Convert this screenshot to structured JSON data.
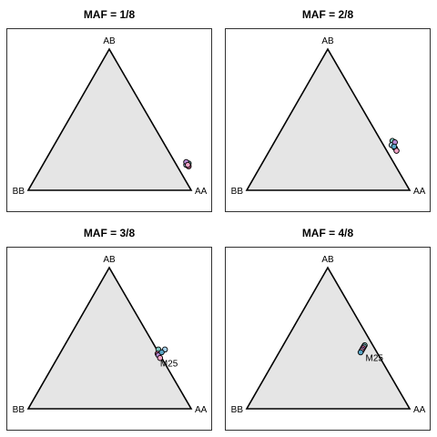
{
  "chart_data": [
    {
      "type": "scatter",
      "title": "MAF = 1/8",
      "vertices": {
        "top": "AB",
        "left": "BB",
        "right": "AA"
      },
      "point_colors": [
        "#7ec8c0",
        "#a9d4f0",
        "#e8669a",
        "#b98bd6",
        "#f4a6c8"
      ],
      "points": [
        {
          "AA": 0.89,
          "AB": 0.19,
          "BB": -0.08
        },
        {
          "AA": 0.88,
          "AB": 0.18,
          "BB": -0.06
        },
        {
          "AA": 0.9,
          "AB": 0.17,
          "BB": -0.07
        },
        {
          "AA": 0.87,
          "AB": 0.2,
          "BB": -0.07
        },
        {
          "AA": 0.89,
          "AB": 0.18,
          "BB": -0.07
        }
      ],
      "annotations": []
    },
    {
      "type": "scatter",
      "title": "MAF = 2/8",
      "vertices": {
        "top": "AB",
        "left": "BB",
        "right": "AA"
      },
      "point_colors": [
        "#7ec8c0",
        "#a9d4f0",
        "#e8669a",
        "#b98bd6",
        "#f4a6c8",
        "#5aa7c8"
      ],
      "points": [
        {
          "AA": 0.72,
          "AB": 0.35,
          "BB": -0.07
        },
        {
          "AA": 0.73,
          "AB": 0.32,
          "BB": -0.05
        },
        {
          "AA": 0.76,
          "AB": 0.3,
          "BB": -0.06
        },
        {
          "AA": 0.74,
          "AB": 0.34,
          "BB": -0.08
        },
        {
          "AA": 0.78,
          "AB": 0.28,
          "BB": -0.06
        },
        {
          "AA": 0.75,
          "AB": 0.31,
          "BB": -0.06
        }
      ],
      "annotations": []
    },
    {
      "type": "scatter",
      "title": "MAF = 3/8",
      "vertices": {
        "top": "AB",
        "left": "BB",
        "right": "AA"
      },
      "point_colors": [
        "#7ec8c0",
        "#a9d4f0",
        "#e8669a",
        "#b98bd6",
        "#f4a6c8",
        "#5aa7c8"
      ],
      "points": [
        {
          "AA": 0.59,
          "AB": 0.42,
          "BB": -0.01
        },
        {
          "AA": 0.63,
          "AB": 0.42,
          "BB": -0.05
        },
        {
          "AA": 0.6,
          "AB": 0.39,
          "BB": 0.01
        },
        {
          "AA": 0.61,
          "AB": 0.38,
          "BB": 0.01
        },
        {
          "AA": 0.63,
          "AB": 0.36,
          "BB": 0.01
        },
        {
          "AA": 0.62,
          "AB": 0.4,
          "BB": -0.02
        }
      ],
      "annotations": [
        {
          "text": "M25",
          "AA": 0.66,
          "AB": 0.3,
          "BB": 0.04
        }
      ]
    },
    {
      "type": "scatter",
      "title": "MAF = 4/8",
      "vertices": {
        "top": "AB",
        "left": "BB",
        "right": "AA"
      },
      "point_colors": [
        "#7ec8c0",
        "#a9d4f0",
        "#e8669a",
        "#b98bd6",
        "#f4a6c8",
        "#5aa7c8"
      ],
      "points": [
        {
          "AA": 0.5,
          "AB": 0.45,
          "BB": 0.05
        },
        {
          "AA": 0.5,
          "AB": 0.44,
          "BB": 0.06
        },
        {
          "AA": 0.5,
          "AB": 0.43,
          "BB": 0.07
        },
        {
          "AA": 0.5,
          "AB": 0.42,
          "BB": 0.08
        },
        {
          "AA": 0.5,
          "AB": 0.41,
          "BB": 0.09
        },
        {
          "AA": 0.5,
          "AB": 0.4,
          "BB": 0.1
        }
      ],
      "annotations": [
        {
          "text": "M25",
          "AA": 0.56,
          "AB": 0.34,
          "BB": 0.1
        }
      ]
    }
  ],
  "style": {
    "triangle_fill": "#e5e5e5",
    "line_color": "#000000",
    "background": "#ffffff"
  }
}
